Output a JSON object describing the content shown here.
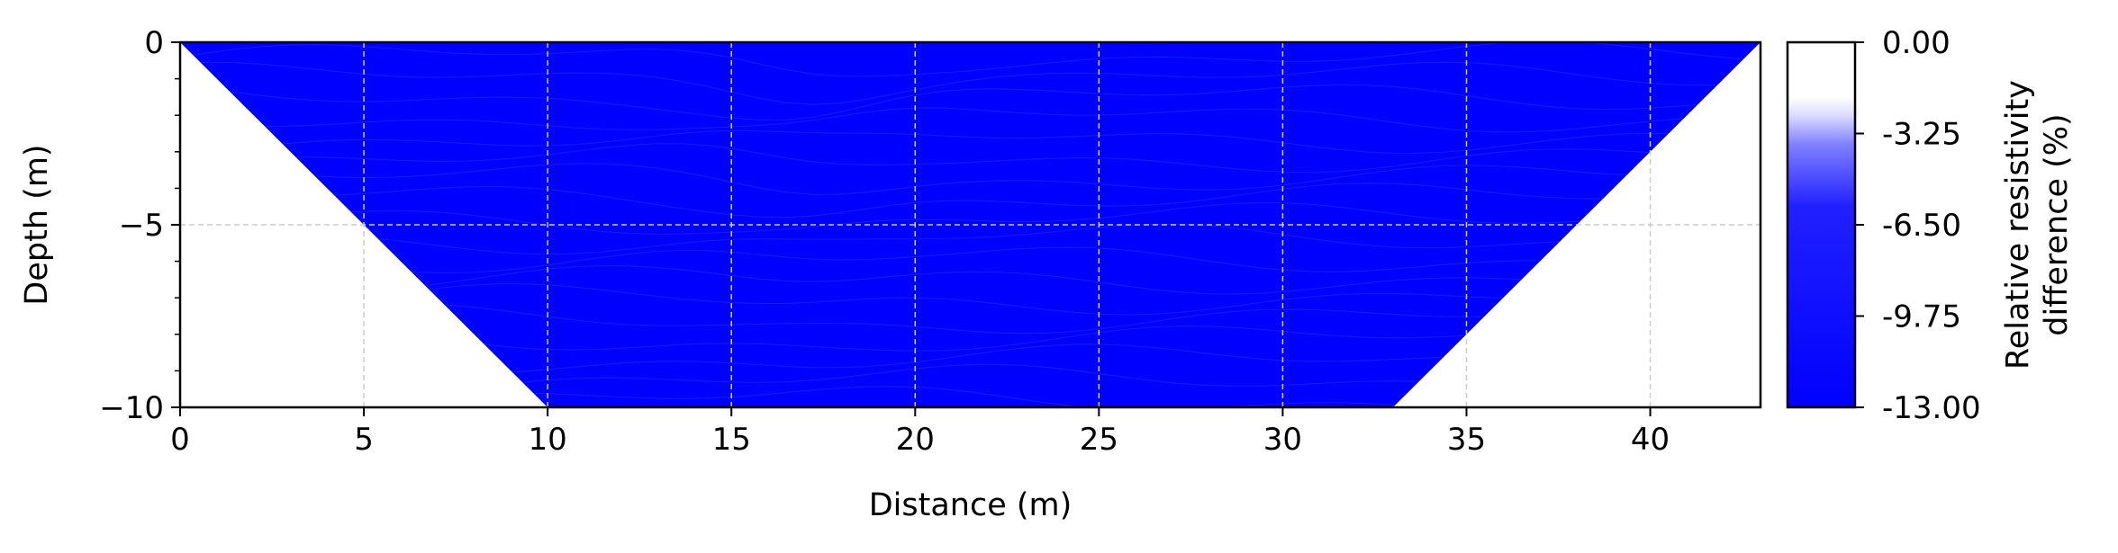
{
  "chart_data": {
    "type": "heatmap",
    "title": "",
    "xlabel": "Distance (m)",
    "ylabel": "Depth (m)",
    "xlim": [
      0,
      43
    ],
    "ylim": [
      -10,
      0
    ],
    "x_ticks": [
      0,
      5,
      10,
      15,
      20,
      25,
      30,
      35,
      40
    ],
    "y_ticks": [
      0,
      -5,
      -10
    ],
    "y_tick_labels": [
      "0",
      "−5",
      "−10"
    ],
    "grid": true,
    "data_region_polygon": [
      [
        0,
        0
      ],
      [
        43,
        0
      ],
      [
        33,
        -10
      ],
      [
        10,
        -10
      ]
    ],
    "colorbar": {
      "label_lines": [
        "Relative resistivity",
        "difference (%)"
      ],
      "ticks": [
        0.0,
        -3.25,
        -6.5,
        -9.75,
        -13.0
      ],
      "tick_labels": [
        "0.00",
        "-3.25",
        "-6.50",
        "-9.75",
        "-13.00"
      ],
      "range": [
        -13.0,
        0.0
      ],
      "color_min": "#0000ff",
      "color_max": "#ffffff"
    },
    "colors": {
      "fill": "#0000ff",
      "contour": "#2a2aff",
      "grid": "#cccccc",
      "axis": "#000000"
    }
  }
}
